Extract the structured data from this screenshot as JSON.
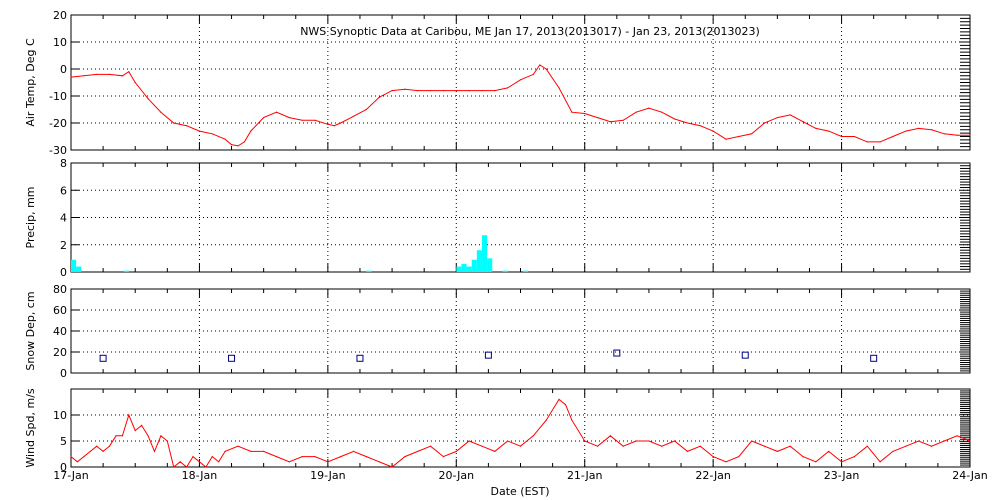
{
  "title": "NWS Synoptic Data at Caribou, ME   Jan 17, 2013(2013017) - Jan 23, 2013(2013023)",
  "xlabel": "Date (EST)",
  "x_ticks": [
    "17-Jan",
    "18-Jan",
    "19-Jan",
    "20-Jan",
    "21-Jan",
    "22-Jan",
    "23-Jan",
    "24-Jan"
  ],
  "colors": {
    "line": "#ff0000",
    "precip": "#00ffff",
    "snow": "#000080",
    "grid": "#000000"
  },
  "chart_data": [
    {
      "type": "line",
      "ylabel": "Air Temp, Deg C",
      "ylim": [
        -30,
        20
      ],
      "yticks": [
        -30,
        -20,
        -10,
        0,
        10,
        20
      ],
      "series": [
        {
          "x": [
            17.0,
            17.1,
            17.2,
            17.3,
            17.4,
            17.45,
            17.5,
            17.6,
            17.7,
            17.8,
            17.9,
            18.0,
            18.1,
            18.2,
            18.25,
            18.3,
            18.35,
            18.4,
            18.5,
            18.6,
            18.7,
            18.8,
            18.9,
            19.0,
            19.05,
            19.1,
            19.2,
            19.3,
            19.4,
            19.5,
            19.6,
            19.7,
            19.8,
            19.9,
            20.0,
            20.1,
            20.2,
            20.3,
            20.4,
            20.5,
            20.6,
            20.65,
            20.7,
            20.8,
            20.9,
            21.0,
            21.1,
            21.2,
            21.3,
            21.4,
            21.5,
            21.6,
            21.7,
            21.8,
            21.9,
            22.0,
            22.1,
            22.2,
            22.3,
            22.4,
            22.5,
            22.6,
            22.7,
            22.8,
            22.9,
            23.0,
            23.1,
            23.2,
            23.3,
            23.4,
            23.5,
            23.6,
            23.7,
            23.8,
            23.9,
            24.0
          ],
          "y": [
            -3,
            -2.5,
            -2,
            -2,
            -2.5,
            -1,
            -5,
            -11,
            -16,
            -20,
            -21,
            -23,
            -24,
            -26,
            -28,
            -28.5,
            -27,
            -23,
            -18,
            -16,
            -18,
            -19,
            -19,
            -20.5,
            -21,
            -20,
            -17.5,
            -15,
            -10.5,
            -8,
            -7.5,
            -8,
            -8,
            -8,
            -8,
            -8,
            -8,
            -8,
            -7,
            -4,
            -2,
            1.5,
            0,
            -7,
            -16,
            -16.5,
            -18,
            -19.5,
            -19,
            -16,
            -14.5,
            -16,
            -18.5,
            -20,
            -21,
            -23,
            -26,
            -25,
            -24,
            -20,
            -18,
            -17,
            -19.5,
            -22,
            -23,
            -25,
            -25,
            -27,
            -27,
            -25,
            -23,
            -22,
            -22.5,
            -24,
            -24.5,
            -24.5
          ]
        }
      ]
    },
    {
      "type": "bar",
      "ylabel": "Precip, mm",
      "ylim": [
        0,
        8
      ],
      "yticks": [
        0,
        2,
        4,
        6,
        8
      ],
      "bar_width_days": 0.04,
      "x": [
        17.0,
        17.04,
        17.41,
        19.3,
        20.0,
        20.04,
        20.08,
        20.12,
        20.16,
        20.2,
        20.24,
        20.36,
        20.52
      ],
      "values": [
        0.9,
        0.4,
        0.1,
        0.1,
        0.4,
        0.6,
        0.4,
        0.9,
        1.6,
        2.7,
        1.0,
        0.1,
        0.1
      ]
    },
    {
      "type": "scatter",
      "ylabel": "Snow Dep, cm",
      "ylim": [
        0,
        80
      ],
      "yticks": [
        0,
        20,
        40,
        60,
        80
      ],
      "x": [
        17.25,
        18.25,
        19.25,
        20.25,
        21.25,
        22.25,
        23.25
      ],
      "y": [
        14,
        14,
        14,
        17,
        19,
        17,
        14
      ]
    },
    {
      "type": "line",
      "ylabel": "Wind Spd, m/s",
      "ylim": [
        0,
        15
      ],
      "yticks": [
        0,
        5,
        10
      ],
      "series": [
        {
          "x": [
            17.0,
            17.05,
            17.1,
            17.15,
            17.2,
            17.25,
            17.3,
            17.35,
            17.4,
            17.45,
            17.5,
            17.55,
            17.6,
            17.65,
            17.7,
            17.75,
            17.8,
            17.85,
            17.9,
            17.95,
            18.0,
            18.05,
            18.1,
            18.15,
            18.2,
            18.3,
            18.4,
            18.5,
            18.6,
            18.7,
            18.8,
            18.9,
            19.0,
            19.1,
            19.2,
            19.3,
            19.4,
            19.5,
            19.6,
            19.7,
            19.8,
            19.9,
            20.0,
            20.1,
            20.2,
            20.3,
            20.4,
            20.5,
            20.6,
            20.7,
            20.8,
            20.85,
            20.9,
            21.0,
            21.1,
            21.2,
            21.3,
            21.4,
            21.5,
            21.6,
            21.7,
            21.8,
            21.9,
            22.0,
            22.1,
            22.2,
            22.3,
            22.4,
            22.5,
            22.6,
            22.7,
            22.8,
            22.9,
            23.0,
            23.1,
            23.2,
            23.3,
            23.4,
            23.5,
            23.6,
            23.7,
            23.8,
            23.9,
            24.0
          ],
          "y": [
            2,
            1,
            2,
            3,
            4,
            3,
            4,
            6,
            6,
            10,
            7,
            8,
            6,
            3,
            6,
            5,
            0,
            1,
            0,
            2,
            1,
            0,
            2,
            1,
            3,
            4,
            3,
            3,
            2,
            1,
            2,
            2,
            1,
            2,
            3,
            2,
            1,
            0,
            2,
            3,
            4,
            2,
            3,
            5,
            4,
            3,
            5,
            4,
            6,
            9,
            13,
            12,
            9,
            5,
            4,
            6,
            4,
            5,
            5,
            4,
            5,
            3,
            4,
            2,
            1,
            2,
            5,
            4,
            3,
            4,
            2,
            1,
            3,
            1,
            2,
            4,
            1,
            3,
            4,
            5,
            4,
            5,
            6,
            5
          ]
        }
      ]
    }
  ]
}
